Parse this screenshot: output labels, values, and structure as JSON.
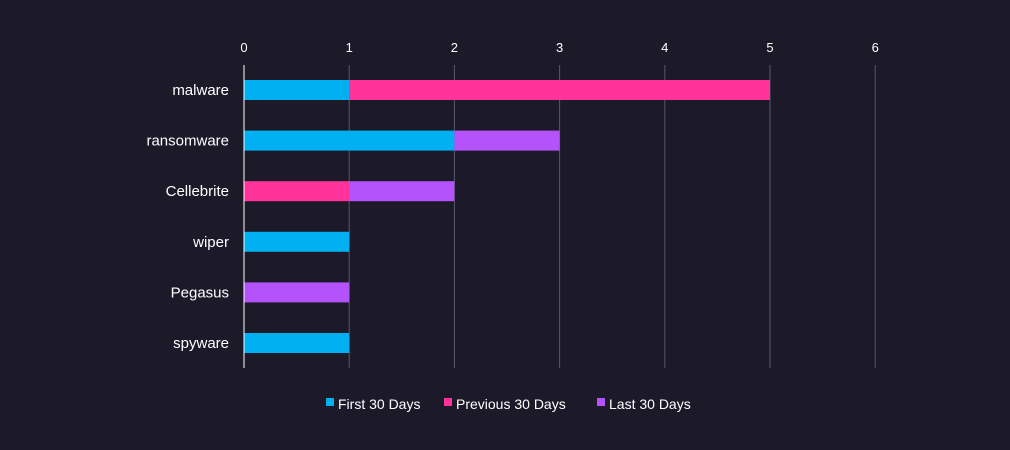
{
  "chart_data": {
    "type": "bar",
    "orientation": "horizontal",
    "stacked": true,
    "title": "",
    "xlabel": "",
    "ylabel": "",
    "xlim": [
      0,
      6
    ],
    "ticks": [
      0,
      1,
      2,
      3,
      4,
      5,
      6
    ],
    "grid": true,
    "legend_position": "bottom",
    "categories": [
      "malware",
      "ransomware",
      "Cellebrite",
      "wiper",
      "Pegasus",
      "spyware"
    ],
    "series": [
      {
        "name": "First 30 Days",
        "color": "#00b0f0",
        "values": [
          1,
          2,
          0,
          1,
          0,
          1
        ]
      },
      {
        "name": "Previous 30 Days",
        "color": "#ff3399",
        "values": [
          4,
          0,
          1,
          0,
          0,
          0
        ]
      },
      {
        "name": "Last 30 Days",
        "color": "#b452fc",
        "values": [
          0,
          1,
          1,
          0,
          1,
          0
        ]
      }
    ]
  }
}
